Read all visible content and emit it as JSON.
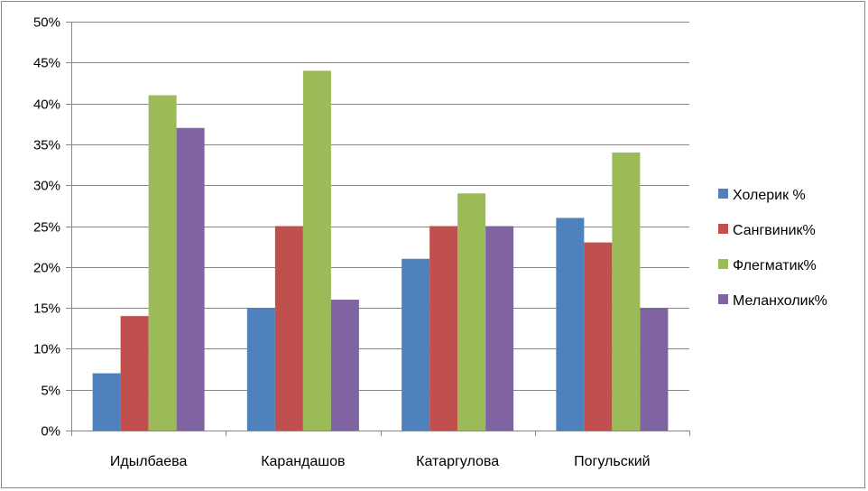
{
  "chart_data": {
    "type": "bar",
    "title": "",
    "xlabel": "",
    "ylabel": "",
    "categories": [
      "Идылбаева",
      "Карандашов",
      "Катаргулова",
      "Погульский"
    ],
    "ylim": [
      0,
      50
    ],
    "ytick_step": 5,
    "ytick_suffix": "%",
    "grid": true,
    "legend_position": "right",
    "series": [
      {
        "name": "Холерик %",
        "color": "#4F81BD",
        "values": [
          7,
          15,
          21,
          26
        ]
      },
      {
        "name": "Сангвиник%",
        "color": "#C0504D",
        "values": [
          14,
          25,
          25,
          23
        ]
      },
      {
        "name": "Флегматик%",
        "color": "#9BBB59",
        "values": [
          41,
          44,
          29,
          34
        ]
      },
      {
        "name": "Меланхолик%",
        "color": "#8064A2",
        "values": [
          37,
          16,
          25,
          15
        ]
      }
    ]
  }
}
